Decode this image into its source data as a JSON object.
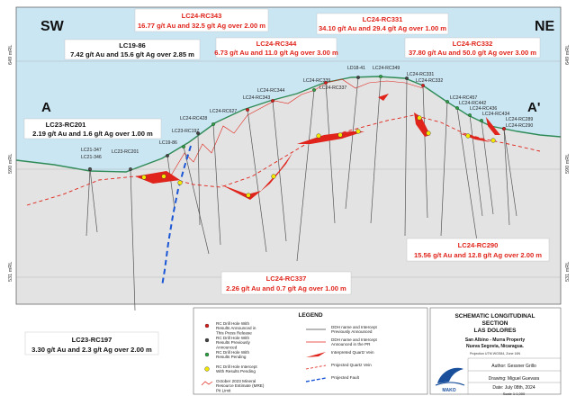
{
  "directions": {
    "left": "SW",
    "right": "NE"
  },
  "section_ends": {
    "left": "A",
    "right": "A'"
  },
  "elevation_labels": {
    "top": "649 mRL",
    "mid": "590 mRL",
    "bottom": "531 mRL"
  },
  "callouts": [
    {
      "id": "LC24-RC343",
      "hole": "LC24-RC343",
      "text": "16.77 g/t Au and 32.5 g/t Ag over 2.00 m",
      "color": "red"
    },
    {
      "id": "LC24-RC331",
      "hole": "LC24-RC331",
      "text": "34.10 g/t Au and 29.4 g/t Ag over 1.00 m",
      "color": "red"
    },
    {
      "id": "LC19-86",
      "hole": "LC19-86",
      "text": "7.42 g/t Au and 15.6 g/t Ag over 2.85 m",
      "color": "black"
    },
    {
      "id": "LC24-RC344",
      "hole": "LC24-RC344",
      "text": "6.73 g/t Au and 11.0 g/t Ag over 3.00 m",
      "color": "red"
    },
    {
      "id": "LC24-RC332",
      "hole": "LC24-RC332",
      "text": "37.80 g/t Au and 50.0 g/t Ag over 3.00 m",
      "color": "red"
    },
    {
      "id": "LC23-RC201",
      "hole": "LC23-RC201",
      "text": "2.19 g/t Au and 1.6 g/t Ag over 1.00 m",
      "color": "black"
    },
    {
      "id": "LC24-RC290",
      "hole": "LC24-RC290",
      "text": "15.56 g/t Au and 12.8 g/t Ag over 2.00 m",
      "color": "red"
    },
    {
      "id": "LC24-RC337",
      "hole": "LC24-RC337",
      "text": "2.26 g/t Au and 0.7 g/t Ag over 1.00 m",
      "color": "red"
    },
    {
      "id": "LC23-RC197",
      "hole": "LC23-RC197",
      "text": "3.30 g/t Au and 2.3 g/t Ag over 2.00 m",
      "color": "black"
    }
  ],
  "hole_labels": [
    "LC21-347",
    "LC21-346",
    "LC23-RC201",
    "LC19-86",
    "LC23-RC197",
    "LC24-RC428",
    "LC24-RC627",
    "LC24-RC343",
    "LC24-RC344",
    "LC24-RC339",
    "LC24-RC337",
    "LD18-41",
    "LC24-RC349",
    "LC24-RC331",
    "LC24-RC332",
    "LC24-RC457",
    "LC24-RC442",
    "LC24-RC436",
    "LC24-RC434",
    "LC24-RC289",
    "LC24-RC290"
  ],
  "legend": {
    "title": "LEGEND",
    "col1": [
      {
        "icon": "red-dot",
        "label": "RC Drill Hole With Results Announced in This Press Release"
      },
      {
        "icon": "dark-dot",
        "label": "RC Drill Hole With Results Previously Announced"
      },
      {
        "icon": "green-dot",
        "label": "RC Drill Hole With Results Pending"
      },
      {
        "icon": "yellow-x-dot",
        "label": "RC Drill Hole Intercept With Results Pending"
      },
      {
        "icon": "red-line",
        "label": "October 2023 Mineral Resource Estimate (MRE) Pit Limit"
      }
    ],
    "col2": [
      {
        "icon": "black-sample",
        "label": "DDH name and Intercept Previously Announced"
      },
      {
        "icon": "red-sample",
        "label": "DDH name and Intercept Announced in the PR"
      },
      {
        "icon": "red-vein",
        "label": "Interpreted Quartz Vein"
      },
      {
        "icon": "red-dash",
        "label": "Projected Quartz Vein"
      },
      {
        "icon": "blue-dash",
        "label": "Projected Fault"
      }
    ]
  },
  "title_block": {
    "line1": "SCHEMATIC LONGITUDINAL",
    "line2": "SECTION",
    "line3": "LAS DOLORES",
    "property": "San Albino - Murra Property",
    "location": "Nueva Segovia, Nicaragua.",
    "projection": "Projection UTM WGS84, Zone 16N",
    "author": "Author: Gessner Grillo",
    "drawing": "Drawing: Miguel Guevara",
    "date": "Date: July 08th, 2024",
    "scale": "Scale 1:1,000",
    "logo_text": "MAKO"
  },
  "colors": {
    "sky": "#cbe6f3",
    "ground": "#e3e3e3",
    "surface": "#2e8b57",
    "vein": "#e0241b",
    "fault": "#1a56d6"
  }
}
